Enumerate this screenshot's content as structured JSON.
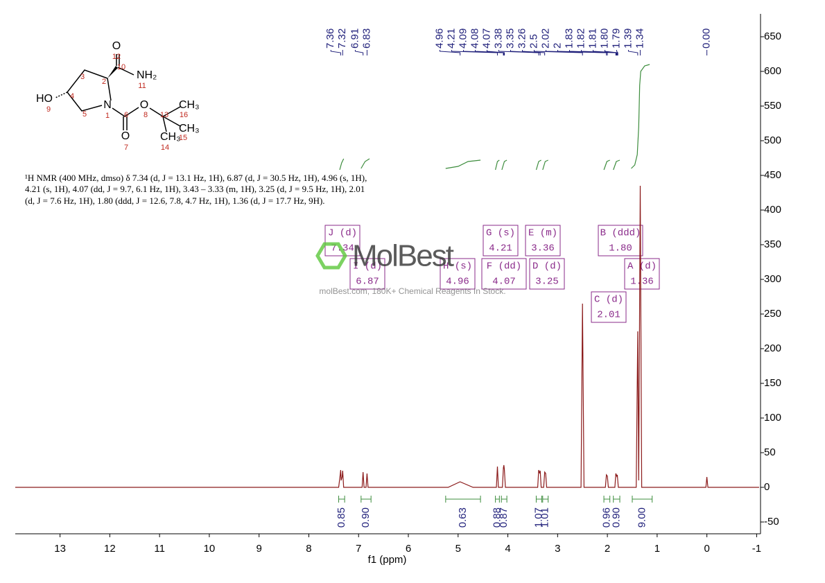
{
  "structure": {
    "atoms": [
      "O",
      "NH₂",
      "HO",
      "N",
      "O",
      "CH₃",
      "CH₃",
      "O",
      "CH₃"
    ],
    "numbers": [
      "12",
      "10",
      "11",
      "3",
      "2",
      "9",
      "4",
      "5",
      "1",
      "6",
      "8",
      "13",
      "16",
      "15",
      "7",
      "14"
    ]
  },
  "description": [
    "¹H NMR (400 MHz, dmso) δ 7.34 (d, J = 13.1 Hz, 1H), 6.87 (d, J = 30.5 Hz, 1H), 4.96 (s, 1H),",
    "4.21 (s, 1H), 4.07 (dd, J = 9.7, 6.1 Hz, 1H), 3.43 – 3.33 (m, 1H), 3.25 (d, J = 9.5 Hz, 1H), 2.01",
    "(d, J = 7.6 Hz, 1H), 1.80 (ddd, J = 12.6, 7.8, 4.7 Hz, 1H), 1.36 (d, J = 17.7 Hz, 9H)."
  ],
  "watermark": {
    "logo": "MolBest",
    "text": "molBest.com, 180K+ Chemical Reagents In Stock."
  },
  "chart_data": {
    "type": "line",
    "xlabel": "f1 (ppm)",
    "xlim": [
      13.9,
      -1.05
    ],
    "xticks": [
      13,
      12,
      11,
      10,
      9,
      8,
      7,
      6,
      5,
      4,
      3,
      2,
      1,
      0,
      -1
    ],
    "ylim": [
      -67,
      683
    ],
    "yticks": [
      650,
      600,
      550,
      500,
      450,
      400,
      350,
      300,
      250,
      200,
      150,
      100,
      50,
      0,
      -50
    ],
    "series": [
      {
        "color": "#8b1a1a",
        "x": [
          13.9,
          7.4,
          7.37,
          7.36,
          7.35,
          7.33,
          7.32,
          7.3,
          6.93,
          6.91,
          6.89,
          6.85,
          6.83,
          6.81,
          5.2,
          4.96,
          4.7,
          4.23,
          4.21,
          4.19,
          4.11,
          4.09,
          4.08,
          4.07,
          4.05,
          3.4,
          3.38,
          3.36,
          3.35,
          3.33,
          3.28,
          3.26,
          3.24,
          3.22,
          2.53,
          2.5,
          2.47,
          2.04,
          2.02,
          2.0,
          1.98,
          1.85,
          1.83,
          1.81,
          1.8,
          1.78,
          1.42,
          1.39,
          1.37,
          1.34,
          1.31,
          0.02,
          0.0,
          -0.02,
          -1.05
        ],
        "values": [
          0,
          0,
          18,
          25,
          10,
          15,
          24,
          0,
          0,
          22,
          0,
          0,
          20,
          0,
          0,
          8,
          0,
          0,
          30,
          0,
          0,
          28,
          32,
          26,
          0,
          0,
          25,
          20,
          24,
          0,
          0,
          22,
          20,
          0,
          0,
          265,
          0,
          0,
          18,
          16,
          0,
          0,
          20,
          16,
          18,
          0,
          0,
          225,
          10,
          435,
          0,
          0,
          15,
          0,
          0
        ]
      },
      {
        "color": "#3c8c3c",
        "x": [
          7.38,
          7.34,
          7.3,
          null,
          6.95,
          6.87,
          6.78,
          null,
          5.25,
          5.0,
          4.8,
          4.55,
          null,
          4.25,
          4.21,
          4.17,
          null,
          4.12,
          4.07,
          4.02,
          null,
          3.43,
          3.38,
          3.33,
          null,
          3.3,
          3.25,
          3.19,
          null,
          2.07,
          2.01,
          1.95,
          null,
          1.88,
          1.82,
          1.75,
          null,
          1.52,
          1.45,
          1.4,
          1.37,
          1.35,
          1.33,
          1.25,
          1.15
        ],
        "values": [
          458,
          468,
          474,
          null,
          460,
          470,
          474,
          null,
          460,
          463,
          470,
          472,
          null,
          458,
          470,
          472,
          null,
          458,
          470,
          472,
          null,
          458,
          470,
          472,
          null,
          458,
          470,
          472,
          null,
          458,
          470,
          472,
          null,
          458,
          470,
          472,
          null,
          460,
          465,
          480,
          520,
          580,
          600,
          608,
          610
        ]
      }
    ],
    "peak_labels": [
      7.36,
      7.32,
      6.91,
      6.83,
      4.96,
      4.21,
      4.09,
      4.08,
      4.07,
      3.38,
      3.35,
      3.26,
      2.5,
      2.02,
      2.0,
      1.83,
      1.82,
      1.81,
      {
        "value": 1.8,
        "label": "1.80"
      },
      1.79,
      1.39,
      1.34,
      {
        "value": 0,
        "label": "0.00"
      }
    ],
    "integrals": [
      {
        "value": 0.85,
        "range": [
          7.4,
          7.28
        ]
      },
      {
        "value": {
          "value": 0.9,
          "label": "0.90"
        },
        "range": [
          6.95,
          6.75
        ]
      },
      {
        "value": 0.63,
        "range": [
          5.25,
          4.55
        ]
      },
      {
        "value": 0.88,
        "range": [
          4.25,
          4.17
        ]
      },
      {
        "value": 0.87,
        "range": [
          4.13,
          4.02
        ]
      },
      {
        "value": 1.07,
        "range": [
          3.43,
          3.32
        ]
      },
      {
        "value": 1.01,
        "range": [
          3.3,
          3.19
        ]
      },
      {
        "value": 0.96,
        "range": [
          2.07,
          1.95
        ]
      },
      {
        "value": {
          "value": 0.9,
          "label": "0.90"
        },
        "range": [
          1.88,
          1.75
        ]
      },
      {
        "value": {
          "value": 9,
          "label": "9.00"
        },
        "range": [
          1.5,
          1.1
        ]
      }
    ],
    "multiplets": [
      {
        "name": "J (d)",
        "value": 7.34
      },
      {
        "name": "I (d)",
        "value": 6.87
      },
      {
        "name": "H (s)",
        "value": 4.96
      },
      {
        "name": "G (s)",
        "value": 4.21
      },
      {
        "name": "F (dd)",
        "value": 4.07
      },
      {
        "name": "E (m)",
        "value": 3.36
      },
      {
        "name": "D (d)",
        "value": 3.25
      },
      {
        "name": "C (d)",
        "value": 2.01
      },
      {
        "name": "B (ddd)",
        "value": {
          "value": 1.8,
          "label": "1.80"
        }
      },
      {
        "name": "A (d)",
        "value": 1.36
      }
    ]
  }
}
